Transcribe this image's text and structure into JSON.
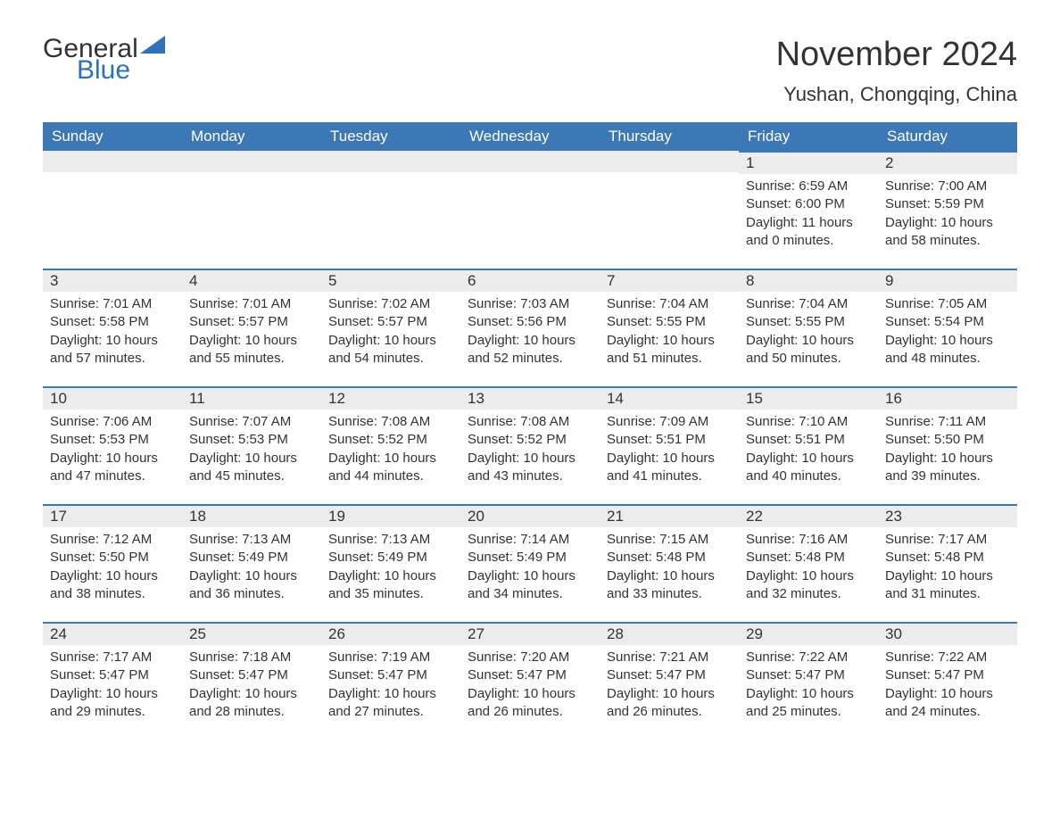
{
  "brand": {
    "word1": "General",
    "word2": "Blue"
  },
  "title": "November 2024",
  "location": "Yushan, Chongqing, China",
  "colors": {
    "header_bg": "#3b78b5",
    "header_text": "#ffffff",
    "daybar_bg": "#ececec",
    "daybar_border": "#3b78b5",
    "body_text": "#333333",
    "brand_blue": "#2d72b8",
    "page_bg": "#ffffff"
  },
  "fonts": {
    "base_family": "Arial",
    "title_size_pt": 28,
    "location_size_pt": 16,
    "header_size_pt": 13,
    "body_size_pt": 11
  },
  "days_of_week": [
    "Sunday",
    "Monday",
    "Tuesday",
    "Wednesday",
    "Thursday",
    "Friday",
    "Saturday"
  ],
  "weeks": [
    [
      null,
      null,
      null,
      null,
      null,
      {
        "n": "1",
        "sunrise": "Sunrise: 6:59 AM",
        "sunset": "Sunset: 6:00 PM",
        "daylight": "Daylight: 11 hours and 0 minutes."
      },
      {
        "n": "2",
        "sunrise": "Sunrise: 7:00 AM",
        "sunset": "Sunset: 5:59 PM",
        "daylight": "Daylight: 10 hours and 58 minutes."
      }
    ],
    [
      {
        "n": "3",
        "sunrise": "Sunrise: 7:01 AM",
        "sunset": "Sunset: 5:58 PM",
        "daylight": "Daylight: 10 hours and 57 minutes."
      },
      {
        "n": "4",
        "sunrise": "Sunrise: 7:01 AM",
        "sunset": "Sunset: 5:57 PM",
        "daylight": "Daylight: 10 hours and 55 minutes."
      },
      {
        "n": "5",
        "sunrise": "Sunrise: 7:02 AM",
        "sunset": "Sunset: 5:57 PM",
        "daylight": "Daylight: 10 hours and 54 minutes."
      },
      {
        "n": "6",
        "sunrise": "Sunrise: 7:03 AM",
        "sunset": "Sunset: 5:56 PM",
        "daylight": "Daylight: 10 hours and 52 minutes."
      },
      {
        "n": "7",
        "sunrise": "Sunrise: 7:04 AM",
        "sunset": "Sunset: 5:55 PM",
        "daylight": "Daylight: 10 hours and 51 minutes."
      },
      {
        "n": "8",
        "sunrise": "Sunrise: 7:04 AM",
        "sunset": "Sunset: 5:55 PM",
        "daylight": "Daylight: 10 hours and 50 minutes."
      },
      {
        "n": "9",
        "sunrise": "Sunrise: 7:05 AM",
        "sunset": "Sunset: 5:54 PM",
        "daylight": "Daylight: 10 hours and 48 minutes."
      }
    ],
    [
      {
        "n": "10",
        "sunrise": "Sunrise: 7:06 AM",
        "sunset": "Sunset: 5:53 PM",
        "daylight": "Daylight: 10 hours and 47 minutes."
      },
      {
        "n": "11",
        "sunrise": "Sunrise: 7:07 AM",
        "sunset": "Sunset: 5:53 PM",
        "daylight": "Daylight: 10 hours and 45 minutes."
      },
      {
        "n": "12",
        "sunrise": "Sunrise: 7:08 AM",
        "sunset": "Sunset: 5:52 PM",
        "daylight": "Daylight: 10 hours and 44 minutes."
      },
      {
        "n": "13",
        "sunrise": "Sunrise: 7:08 AM",
        "sunset": "Sunset: 5:52 PM",
        "daylight": "Daylight: 10 hours and 43 minutes."
      },
      {
        "n": "14",
        "sunrise": "Sunrise: 7:09 AM",
        "sunset": "Sunset: 5:51 PM",
        "daylight": "Daylight: 10 hours and 41 minutes."
      },
      {
        "n": "15",
        "sunrise": "Sunrise: 7:10 AM",
        "sunset": "Sunset: 5:51 PM",
        "daylight": "Daylight: 10 hours and 40 minutes."
      },
      {
        "n": "16",
        "sunrise": "Sunrise: 7:11 AM",
        "sunset": "Sunset: 5:50 PM",
        "daylight": "Daylight: 10 hours and 39 minutes."
      }
    ],
    [
      {
        "n": "17",
        "sunrise": "Sunrise: 7:12 AM",
        "sunset": "Sunset: 5:50 PM",
        "daylight": "Daylight: 10 hours and 38 minutes."
      },
      {
        "n": "18",
        "sunrise": "Sunrise: 7:13 AM",
        "sunset": "Sunset: 5:49 PM",
        "daylight": "Daylight: 10 hours and 36 minutes."
      },
      {
        "n": "19",
        "sunrise": "Sunrise: 7:13 AM",
        "sunset": "Sunset: 5:49 PM",
        "daylight": "Daylight: 10 hours and 35 minutes."
      },
      {
        "n": "20",
        "sunrise": "Sunrise: 7:14 AM",
        "sunset": "Sunset: 5:49 PM",
        "daylight": "Daylight: 10 hours and 34 minutes."
      },
      {
        "n": "21",
        "sunrise": "Sunrise: 7:15 AM",
        "sunset": "Sunset: 5:48 PM",
        "daylight": "Daylight: 10 hours and 33 minutes."
      },
      {
        "n": "22",
        "sunrise": "Sunrise: 7:16 AM",
        "sunset": "Sunset: 5:48 PM",
        "daylight": "Daylight: 10 hours and 32 minutes."
      },
      {
        "n": "23",
        "sunrise": "Sunrise: 7:17 AM",
        "sunset": "Sunset: 5:48 PM",
        "daylight": "Daylight: 10 hours and 31 minutes."
      }
    ],
    [
      {
        "n": "24",
        "sunrise": "Sunrise: 7:17 AM",
        "sunset": "Sunset: 5:47 PM",
        "daylight": "Daylight: 10 hours and 29 minutes."
      },
      {
        "n": "25",
        "sunrise": "Sunrise: 7:18 AM",
        "sunset": "Sunset: 5:47 PM",
        "daylight": "Daylight: 10 hours and 28 minutes."
      },
      {
        "n": "26",
        "sunrise": "Sunrise: 7:19 AM",
        "sunset": "Sunset: 5:47 PM",
        "daylight": "Daylight: 10 hours and 27 minutes."
      },
      {
        "n": "27",
        "sunrise": "Sunrise: 7:20 AM",
        "sunset": "Sunset: 5:47 PM",
        "daylight": "Daylight: 10 hours and 26 minutes."
      },
      {
        "n": "28",
        "sunrise": "Sunrise: 7:21 AM",
        "sunset": "Sunset: 5:47 PM",
        "daylight": "Daylight: 10 hours and 26 minutes."
      },
      {
        "n": "29",
        "sunrise": "Sunrise: 7:22 AM",
        "sunset": "Sunset: 5:47 PM",
        "daylight": "Daylight: 10 hours and 25 minutes."
      },
      {
        "n": "30",
        "sunrise": "Sunrise: 7:22 AM",
        "sunset": "Sunset: 5:47 PM",
        "daylight": "Daylight: 10 hours and 24 minutes."
      }
    ]
  ]
}
